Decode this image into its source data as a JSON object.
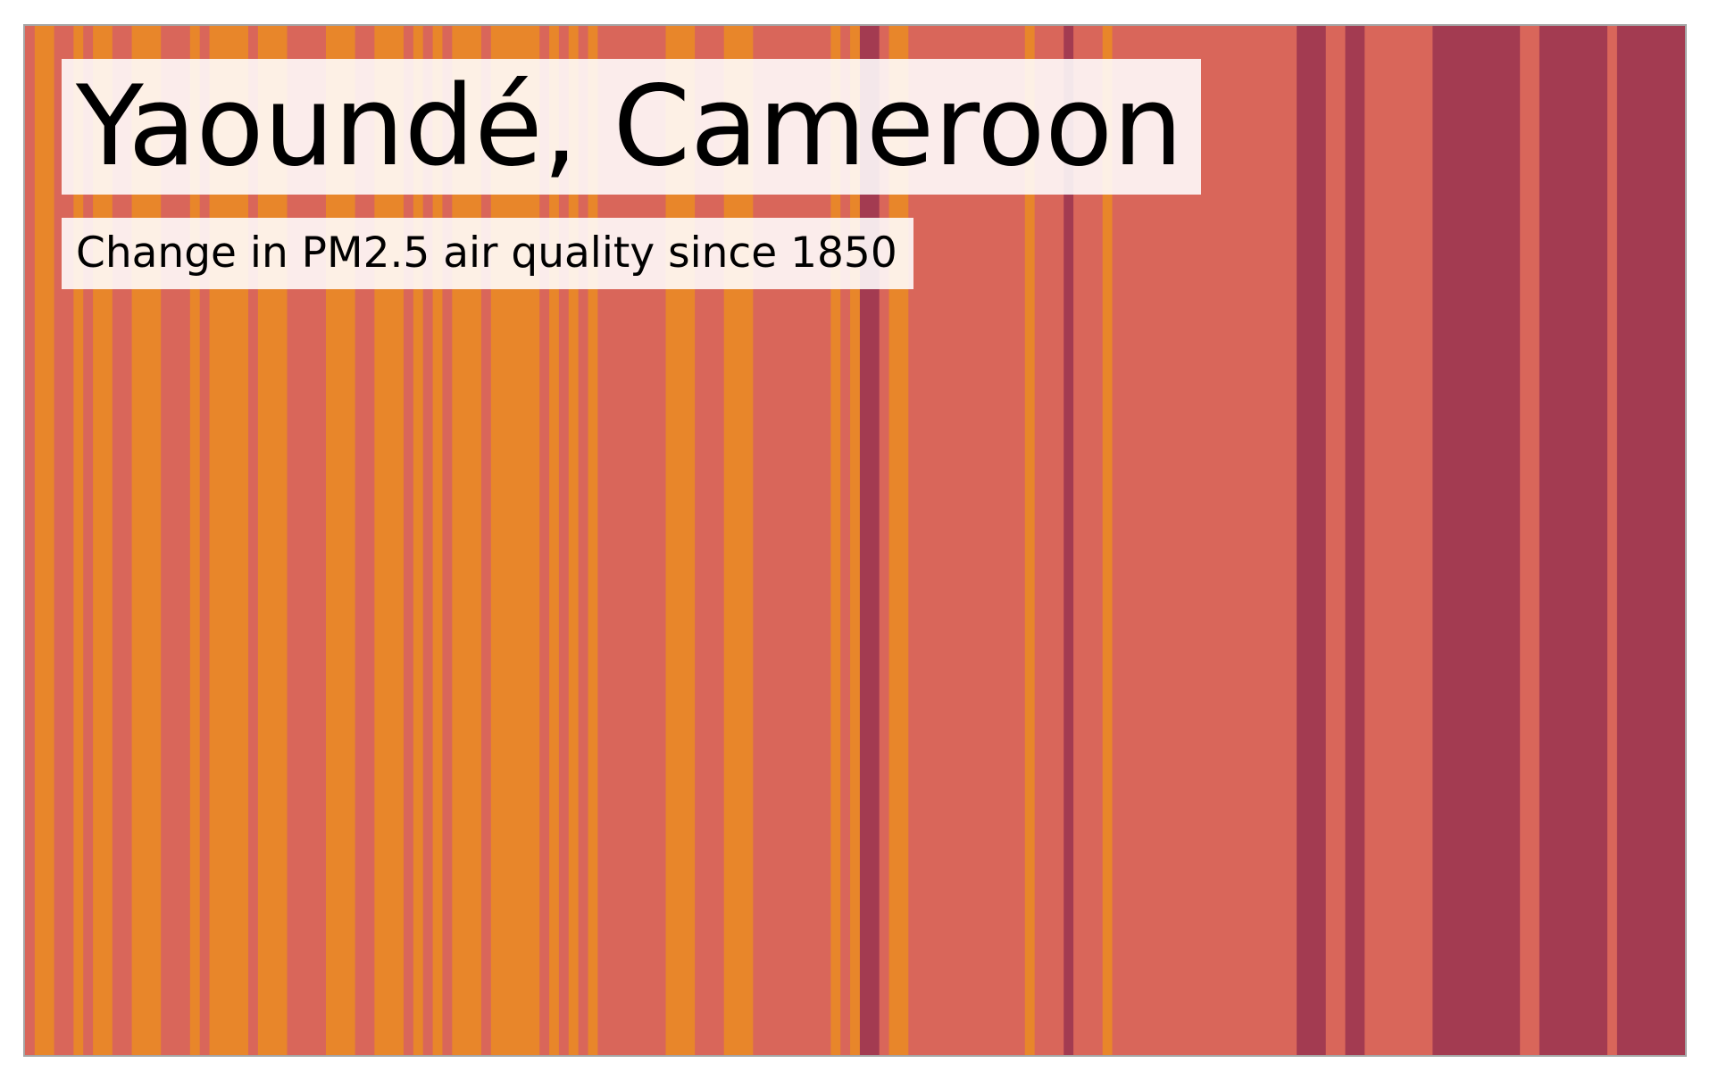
{
  "chart_data": {
    "type": "bar",
    "title": "Yaoundé, Cameroon",
    "subtitle": "Change in PM2.5 air quality since 1850",
    "xlabel": "",
    "ylabel": "",
    "grid": false,
    "legend": "none",
    "colors": {
      "low": "#e8862a",
      "mid": "#d9665a",
      "high": "#a33b51"
    },
    "x_start": 1850,
    "x_end": 2021,
    "stripes": [
      [
        "mid",
        1
      ],
      [
        "low",
        2
      ],
      [
        "mid",
        2
      ],
      [
        "low",
        1
      ],
      [
        "mid",
        1
      ],
      [
        "low",
        2
      ],
      [
        "mid",
        2
      ],
      [
        "low",
        3
      ],
      [
        "mid",
        3
      ],
      [
        "low",
        1
      ],
      [
        "mid",
        1
      ],
      [
        "low",
        4
      ],
      [
        "mid",
        1
      ],
      [
        "low",
        3
      ],
      [
        "mid",
        4
      ],
      [
        "low",
        3
      ],
      [
        "mid",
        2
      ],
      [
        "low",
        3
      ],
      [
        "mid",
        1
      ],
      [
        "low",
        1
      ],
      [
        "mid",
        1
      ],
      [
        "low",
        1
      ],
      [
        "mid",
        1
      ],
      [
        "low",
        3
      ],
      [
        "mid",
        1
      ],
      [
        "low",
        5
      ],
      [
        "mid",
        1
      ],
      [
        "low",
        1
      ],
      [
        "mid",
        1
      ],
      [
        "low",
        1
      ],
      [
        "mid",
        1
      ],
      [
        "low",
        1
      ],
      [
        "mid",
        7
      ],
      [
        "low",
        3
      ],
      [
        "mid",
        3
      ],
      [
        "low",
        3
      ],
      [
        "mid",
        8
      ],
      [
        "low",
        1
      ],
      [
        "mid",
        1
      ],
      [
        "low",
        1
      ],
      [
        "high",
        2
      ],
      [
        "mid",
        1
      ],
      [
        "low",
        2
      ],
      [
        "mid",
        12
      ],
      [
        "low",
        1
      ],
      [
        "mid",
        3
      ],
      [
        "high",
        1
      ],
      [
        "mid",
        3
      ],
      [
        "low",
        1
      ],
      [
        "mid",
        19
      ],
      [
        "high",
        3
      ],
      [
        "mid",
        2
      ],
      [
        "high",
        2
      ],
      [
        "mid",
        7
      ],
      [
        "high",
        9
      ],
      [
        "mid",
        2
      ],
      [
        "high",
        7
      ],
      [
        "mid",
        1
      ],
      [
        "high",
        7
      ]
    ]
  }
}
